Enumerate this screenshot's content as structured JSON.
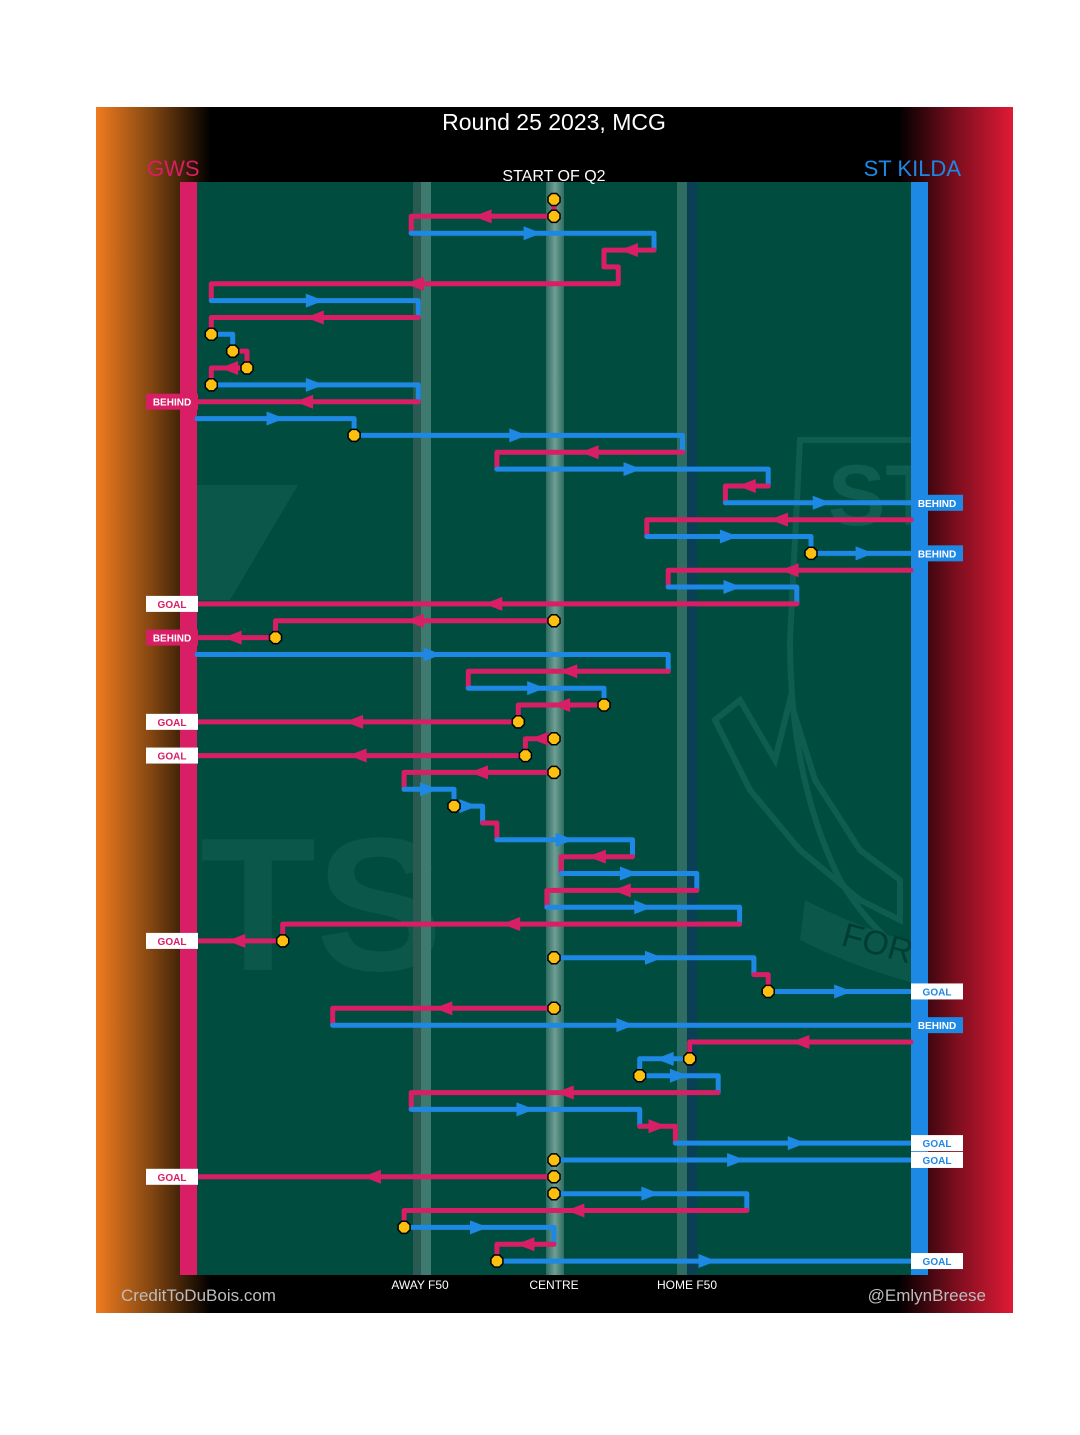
{
  "title": "Round 25 2023, MCG",
  "subtitle": "START OF Q2",
  "teams": {
    "away": {
      "name": "GWS",
      "color": "#d81e64"
    },
    "home": {
      "name": "ST KILDA",
      "color": "#1e88e5"
    }
  },
  "x_labels": {
    "away_f50": "AWAY F50",
    "centre": "CENTRE",
    "home_f50": "HOME F50"
  },
  "credits": {
    "left": "CreditToDuBois.com",
    "right": "@EmlynBreese"
  },
  "watermark": {
    "text_top": "ST K",
    "motto": "FORTIUS QU",
    "gws_text": "TS"
  },
  "colors": {
    "field": "#004d40",
    "away": "#d81e64",
    "home": "#1e88e5",
    "stoppage_fill": "#fdc010",
    "background": "#000000",
    "left_gradient_edge": "#f07b20",
    "right_gradient_edge": "#e01a35"
  },
  "chart_data": {
    "type": "line",
    "description_axes": "x: field position 0=away goal line, 100=home goal line; y: sequence order of events",
    "xlim": [
      0,
      100
    ],
    "ylim": [
      0,
      65
    ],
    "segments": [
      {
        "team": "away",
        "p": [
          [
            50,
            1
          ],
          [
            50,
            2
          ]
        ]
      },
      {
        "team": "away",
        "p": [
          [
            50,
            2
          ],
          [
            30,
            2
          ],
          [
            30,
            3
          ]
        ]
      },
      {
        "team": "home",
        "p": [
          [
            30,
            3
          ],
          [
            64,
            3
          ],
          [
            64,
            4
          ]
        ]
      },
      {
        "team": "away",
        "p": [
          [
            64,
            4
          ],
          [
            57,
            4
          ],
          [
            57,
            5
          ]
        ]
      },
      {
        "team": "away",
        "p": [
          [
            57,
            5
          ],
          [
            59,
            5
          ],
          [
            59,
            6
          ],
          [
            2,
            6
          ],
          [
            2,
            7
          ]
        ]
      },
      {
        "team": "home",
        "p": [
          [
            2,
            7
          ],
          [
            31,
            7
          ],
          [
            31,
            8
          ]
        ]
      },
      {
        "team": "away",
        "p": [
          [
            31,
            8
          ],
          [
            2,
            8
          ],
          [
            2,
            9
          ]
        ]
      },
      {
        "team": "home",
        "p": [
          [
            2,
            9
          ],
          [
            5,
            9
          ],
          [
            5,
            10
          ]
        ]
      },
      {
        "team": "away",
        "p": [
          [
            5,
            10
          ],
          [
            7,
            10
          ],
          [
            7,
            11
          ]
        ]
      },
      {
        "team": "away",
        "p": [
          [
            7,
            11
          ],
          [
            2,
            11
          ],
          [
            2,
            12
          ]
        ]
      },
      {
        "team": "home",
        "p": [
          [
            2,
            12
          ],
          [
            31,
            12
          ],
          [
            31,
            13
          ]
        ]
      },
      {
        "team": "away",
        "p": [
          [
            31,
            13
          ],
          [
            -1,
            13
          ]
        ]
      },
      {
        "team": "home",
        "p": [
          [
            0,
            14
          ],
          [
            22,
            14
          ],
          [
            22,
            15
          ]
        ]
      },
      {
        "team": "home",
        "p": [
          [
            22,
            15
          ],
          [
            68,
            15
          ],
          [
            68,
            16
          ]
        ]
      },
      {
        "team": "away",
        "p": [
          [
            68,
            16
          ],
          [
            42,
            16
          ],
          [
            42,
            17
          ]
        ]
      },
      {
        "team": "home",
        "p": [
          [
            42,
            17
          ],
          [
            80,
            17
          ],
          [
            80,
            18
          ]
        ]
      },
      {
        "team": "away",
        "p": [
          [
            80,
            18
          ],
          [
            74,
            18
          ],
          [
            74,
            19
          ]
        ]
      },
      {
        "team": "home",
        "p": [
          [
            74,
            19
          ],
          [
            101,
            19
          ]
        ]
      },
      {
        "team": "away",
        "p": [
          [
            100,
            20
          ],
          [
            63,
            20
          ],
          [
            63,
            21
          ]
        ]
      },
      {
        "team": "home",
        "p": [
          [
            63,
            21
          ],
          [
            86,
            21
          ],
          [
            86,
            22
          ]
        ]
      },
      {
        "team": "home",
        "p": [
          [
            86,
            22
          ],
          [
            101,
            22
          ]
        ]
      },
      {
        "team": "away",
        "p": [
          [
            100,
            23
          ],
          [
            66,
            23
          ],
          [
            66,
            24
          ]
        ]
      },
      {
        "team": "home",
        "p": [
          [
            66,
            24
          ],
          [
            84,
            24
          ],
          [
            84,
            25
          ]
        ]
      },
      {
        "team": "away",
        "p": [
          [
            84,
            25
          ],
          [
            -1,
            25
          ]
        ]
      },
      {
        "team": "away",
        "p": [
          [
            50,
            26
          ],
          [
            11,
            26
          ],
          [
            11,
            27
          ]
        ]
      },
      {
        "team": "away",
        "p": [
          [
            11,
            27
          ],
          [
            -1,
            27
          ]
        ]
      },
      {
        "team": "home",
        "p": [
          [
            0,
            28
          ],
          [
            66,
            28
          ],
          [
            66,
            29
          ]
        ]
      },
      {
        "team": "away",
        "p": [
          [
            66,
            29
          ],
          [
            38,
            29
          ],
          [
            38,
            30
          ]
        ]
      },
      {
        "team": "home",
        "p": [
          [
            38,
            30
          ],
          [
            57,
            30
          ],
          [
            57,
            31
          ]
        ]
      },
      {
        "team": "away",
        "p": [
          [
            57,
            31
          ],
          [
            45,
            31
          ],
          [
            45,
            32
          ]
        ]
      },
      {
        "team": "away",
        "p": [
          [
            45,
            32
          ],
          [
            -1,
            32
          ]
        ]
      },
      {
        "team": "away",
        "p": [
          [
            50,
            33
          ],
          [
            46,
            33
          ],
          [
            46,
            34
          ]
        ]
      },
      {
        "team": "away",
        "p": [
          [
            46,
            34
          ],
          [
            -1,
            34
          ]
        ]
      },
      {
        "team": "away",
        "p": [
          [
            50,
            35
          ],
          [
            29,
            35
          ],
          [
            29,
            36
          ]
        ]
      },
      {
        "team": "home",
        "p": [
          [
            29,
            36
          ],
          [
            36,
            36
          ],
          [
            36,
            37
          ]
        ]
      },
      {
        "team": "home",
        "p": [
          [
            36,
            37
          ],
          [
            40,
            37
          ],
          [
            40,
            38
          ]
        ]
      },
      {
        "team": "away",
        "p": [
          [
            40,
            38
          ],
          [
            42,
            38
          ],
          [
            42,
            39
          ]
        ]
      },
      {
        "team": "home",
        "p": [
          [
            42,
            39
          ],
          [
            61,
            39
          ],
          [
            61,
            40
          ]
        ]
      },
      {
        "team": "away",
        "p": [
          [
            61,
            40
          ],
          [
            51,
            40
          ],
          [
            51,
            41
          ]
        ]
      },
      {
        "team": "home",
        "p": [
          [
            51,
            41
          ],
          [
            70,
            41
          ],
          [
            70,
            42
          ]
        ]
      },
      {
        "team": "away",
        "p": [
          [
            70,
            42
          ],
          [
            49,
            42
          ],
          [
            49,
            43
          ]
        ]
      },
      {
        "team": "home",
        "p": [
          [
            49,
            43
          ],
          [
            76,
            43
          ],
          [
            76,
            44
          ]
        ]
      },
      {
        "team": "away",
        "p": [
          [
            76,
            44
          ],
          [
            12,
            44
          ],
          [
            12,
            45
          ]
        ]
      },
      {
        "team": "away",
        "p": [
          [
            12,
            45
          ],
          [
            -1,
            45
          ]
        ]
      },
      {
        "team": "home",
        "p": [
          [
            50,
            46
          ],
          [
            78,
            46
          ],
          [
            78,
            47
          ]
        ]
      },
      {
        "team": "away",
        "p": [
          [
            78,
            47
          ],
          [
            80,
            47
          ],
          [
            80,
            48
          ]
        ]
      },
      {
        "team": "home",
        "p": [
          [
            80,
            48
          ],
          [
            101,
            48
          ]
        ]
      },
      {
        "team": "away",
        "p": [
          [
            50,
            49
          ],
          [
            19,
            49
          ],
          [
            19,
            50
          ]
        ]
      },
      {
        "team": "home",
        "p": [
          [
            19,
            50
          ],
          [
            101,
            50
          ]
        ]
      },
      {
        "team": "away",
        "p": [
          [
            100,
            51
          ],
          [
            69,
            51
          ],
          [
            69,
            52
          ]
        ]
      },
      {
        "team": "home",
        "p": [
          [
            69,
            52
          ],
          [
            62,
            52
          ],
          [
            62,
            53
          ]
        ]
      },
      {
        "team": "home",
        "p": [
          [
            62,
            53
          ],
          [
            73,
            53
          ],
          [
            73,
            54
          ]
        ]
      },
      {
        "team": "away",
        "p": [
          [
            73,
            54
          ],
          [
            30,
            54
          ],
          [
            30,
            55
          ]
        ]
      },
      {
        "team": "home",
        "p": [
          [
            30,
            55
          ],
          [
            62,
            55
          ],
          [
            62,
            56
          ]
        ]
      },
      {
        "team": "away",
        "p": [
          [
            62,
            56
          ],
          [
            67,
            56
          ],
          [
            67,
            57
          ]
        ]
      },
      {
        "team": "home",
        "p": [
          [
            67,
            57
          ],
          [
            101,
            57
          ]
        ]
      },
      {
        "team": "home",
        "p": [
          [
            50,
            58
          ],
          [
            101,
            58
          ]
        ]
      },
      {
        "team": "away",
        "p": [
          [
            50,
            59
          ],
          [
            -1,
            59
          ]
        ]
      },
      {
        "team": "home",
        "p": [
          [
            50,
            60
          ],
          [
            77,
            60
          ],
          [
            77,
            61
          ]
        ]
      },
      {
        "team": "away",
        "p": [
          [
            77,
            61
          ],
          [
            29,
            61
          ],
          [
            29,
            62
          ]
        ]
      },
      {
        "team": "home",
        "p": [
          [
            29,
            62
          ],
          [
            50,
            62
          ],
          [
            50,
            63
          ]
        ]
      },
      {
        "team": "away",
        "p": [
          [
            50,
            63
          ],
          [
            42,
            63
          ],
          [
            42,
            64
          ]
        ]
      },
      {
        "team": "home",
        "p": [
          [
            42,
            64
          ],
          [
            101,
            64
          ]
        ]
      }
    ],
    "stoppages": [
      {
        "x": 50,
        "y": 1
      },
      {
        "x": 50,
        "y": 2
      },
      {
        "x": 2,
        "y": 9
      },
      {
        "x": 5,
        "y": 10
      },
      {
        "x": 7,
        "y": 11
      },
      {
        "x": 2,
        "y": 12
      },
      {
        "x": 22,
        "y": 15
      },
      {
        "x": 86,
        "y": 22
      },
      {
        "x": 50,
        "y": 26
      },
      {
        "x": 11,
        "y": 27
      },
      {
        "x": 57,
        "y": 31
      },
      {
        "x": 45,
        "y": 32
      },
      {
        "x": 50,
        "y": 33
      },
      {
        "x": 46,
        "y": 34
      },
      {
        "x": 50,
        "y": 35
      },
      {
        "x": 36,
        "y": 37
      },
      {
        "x": 12,
        "y": 45
      },
      {
        "x": 50,
        "y": 46
      },
      {
        "x": 80,
        "y": 48
      },
      {
        "x": 50,
        "y": 49
      },
      {
        "x": 69,
        "y": 52
      },
      {
        "x": 62,
        "y": 53
      },
      {
        "x": 50,
        "y": 58
      },
      {
        "x": 50,
        "y": 59
      },
      {
        "x": 50,
        "y": 60
      },
      {
        "x": 29,
        "y": 62
      },
      {
        "x": 42,
        "y": 64
      }
    ],
    "scores": [
      {
        "team": "away",
        "type": "behind",
        "label": "BEHIND",
        "y": 13
      },
      {
        "team": "home",
        "type": "behind",
        "label": "BEHIND",
        "y": 19
      },
      {
        "team": "home",
        "type": "behind",
        "label": "BEHIND",
        "y": 22
      },
      {
        "team": "away",
        "type": "goal",
        "label": "GOAL",
        "y": 25
      },
      {
        "team": "away",
        "type": "behind",
        "label": "BEHIND",
        "y": 27
      },
      {
        "team": "away",
        "type": "goal",
        "label": "GOAL",
        "y": 32
      },
      {
        "team": "away",
        "type": "goal",
        "label": "GOAL",
        "y": 34
      },
      {
        "team": "away",
        "type": "goal",
        "label": "GOAL",
        "y": 45
      },
      {
        "team": "home",
        "type": "goal",
        "label": "GOAL",
        "y": 48
      },
      {
        "team": "home",
        "type": "behind",
        "label": "BEHIND",
        "y": 50
      },
      {
        "team": "home",
        "type": "goal",
        "label": "GOAL",
        "y": 57
      },
      {
        "team": "home",
        "type": "goal",
        "label": "GOAL",
        "y": 58
      },
      {
        "team": "away",
        "type": "goal",
        "label": "GOAL",
        "y": 59
      },
      {
        "team": "home",
        "type": "goal",
        "label": "GOAL",
        "y": 64
      }
    ]
  }
}
